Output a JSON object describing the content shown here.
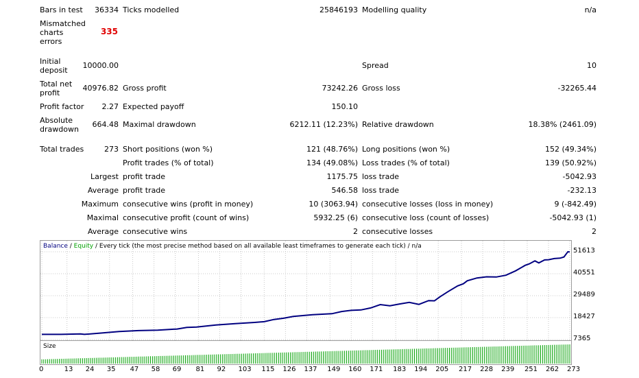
{
  "report": {
    "bars_in_test": {
      "label": "Bars in test",
      "value": "36334"
    },
    "ticks_modelled": {
      "label": "Ticks modelled",
      "value": "25846193"
    },
    "modelling_quality": {
      "label": "Modelling quality",
      "value": "n/a"
    },
    "mismatched": {
      "label_lines": [
        "Mismatched",
        "charts",
        "errors"
      ],
      "value": "335"
    },
    "initial_deposit": {
      "label_lines": [
        "Initial",
        "deposit"
      ],
      "value": "10000.00"
    },
    "spread": {
      "label": "Spread",
      "value": "10"
    },
    "total_net_profit": {
      "label_lines": [
        "Total net",
        "profit"
      ],
      "value": "40976.82"
    },
    "gross_profit": {
      "label": "Gross profit",
      "value": "73242.26"
    },
    "gross_loss": {
      "label": "Gross loss",
      "value": "-32265.44"
    },
    "profit_factor": {
      "label": "Profit factor",
      "value": "2.27"
    },
    "expected_payoff": {
      "label": "Expected payoff",
      "value": "150.10"
    },
    "absolute_drawdown": {
      "label_lines": [
        "Absolute",
        "drawdown"
      ],
      "value": "664.48"
    },
    "maximal_drawdown": {
      "label": "Maximal drawdown",
      "value": "6212.11 (12.23%)"
    },
    "relative_drawdown": {
      "label": "Relative drawdown",
      "value": "18.38% (2461.09)"
    },
    "total_trades": {
      "label": "Total trades",
      "value": "273"
    },
    "short_positions": {
      "label": "Short positions (won %)",
      "value": "121 (48.76%)"
    },
    "long_positions": {
      "label": "Long positions (won %)",
      "value": "152 (49.34%)"
    },
    "profit_trades": {
      "label": "Profit trades (% of total)",
      "value": "134 (49.08%)"
    },
    "loss_trades": {
      "label": "Loss trades (% of total)",
      "value": "139 (50.92%)"
    },
    "largest": {
      "prefix": "Largest",
      "profit_label": "profit trade",
      "profit_value": "1175.75",
      "loss_label": "loss trade",
      "loss_value": "-5042.93"
    },
    "average": {
      "prefix": "Average",
      "profit_label": "profit trade",
      "profit_value": "546.58",
      "loss_label": "loss trade",
      "loss_value": "-232.13"
    },
    "maximum": {
      "prefix": "Maximum",
      "wins_label": "consecutive wins (profit in money)",
      "wins_value": "10 (3063.94)",
      "losses_label": "consecutive losses (loss in money)",
      "losses_value": "9 (-842.49)"
    },
    "maximal": {
      "prefix": "Maximal",
      "profit_label": "consecutive profit (count of wins)",
      "profit_value": "5932.25 (6)",
      "loss_label": "consecutive loss (count of losses)",
      "loss_value": "-5042.93 (1)"
    },
    "average_consec": {
      "prefix": "Average",
      "wins_label": "consecutive wins",
      "wins_value": "2",
      "losses_label": "consecutive losses",
      "losses_value": "2"
    }
  },
  "chart_data": [
    {
      "type": "line",
      "legend": {
        "balance": "Balance",
        "sep": " / ",
        "equity": "Equity",
        "rest": " / Every tick (the most precise method based on all available least timeframes to generate each tick) / n/a"
      },
      "colors": {
        "balance": "#000080",
        "equity": "#00a000",
        "size": "#00a000"
      },
      "y_ticks": [
        "51613",
        "40551",
        "29489",
        "18427",
        "7365"
      ],
      "ylim": [
        7365,
        51613
      ],
      "x_ticks": [
        "0",
        "13",
        "24",
        "35",
        "47",
        "58",
        "69",
        "81",
        "92",
        "103",
        "115",
        "126",
        "137",
        "149",
        "160",
        "171",
        "183",
        "194",
        "205",
        "217",
        "228",
        "239",
        "251",
        "262",
        "273"
      ],
      "xlim": [
        0,
        273
      ],
      "series": [
        {
          "name": "Balance",
          "x": [
            0,
            10,
            20,
            22,
            30,
            40,
            50,
            60,
            70,
            75,
            80,
            90,
            100,
            105,
            110,
            115,
            120,
            125,
            130,
            140,
            150,
            155,
            160,
            165,
            170,
            175,
            180,
            185,
            190,
            195,
            200,
            203,
            206,
            210,
            215,
            218,
            220,
            225,
            230,
            235,
            240,
            245,
            250,
            252,
            255,
            257,
            260,
            262,
            265,
            268,
            270,
            272,
            273
          ],
          "y": [
            10000,
            10000,
            10200,
            10000,
            10600,
            11400,
            11900,
            12100,
            12700,
            13500,
            13700,
            14700,
            15400,
            15700,
            16000,
            16400,
            17500,
            18100,
            19000,
            19900,
            20400,
            21500,
            22100,
            22300,
            23300,
            25000,
            24400,
            25300,
            26100,
            25100,
            27000,
            26900,
            29000,
            31500,
            34400,
            35500,
            37000,
            38400,
            39000,
            38900,
            39800,
            42000,
            44800,
            45500,
            47000,
            46000,
            47500,
            47600,
            48200,
            48400,
            49000,
            51613,
            51500
          ]
        }
      ]
    },
    {
      "type": "bar",
      "label": "Size",
      "x_count": 273,
      "value_start": 0.22,
      "value_end": 1.0
    }
  ]
}
